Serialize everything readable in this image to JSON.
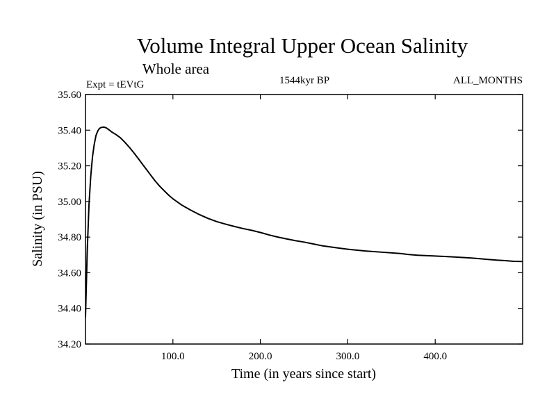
{
  "chart_data": {
    "type": "line",
    "title": "Volume Integral Upper Ocean Salinity",
    "subtitle": "Whole area",
    "experiment_label": "Expt = tEVtG",
    "period_label": "1544kyr BP",
    "months_label": "ALL_MONTHS",
    "xlabel": "Time (in years since start)",
    "ylabel": "Salinity (in PSU)",
    "xlim": [
      0,
      500
    ],
    "ylim": [
      34.2,
      35.6
    ],
    "x_ticks": [
      100,
      200,
      300,
      400
    ],
    "x_tick_labels": [
      "100.0",
      "200.0",
      "300.0",
      "400.0"
    ],
    "y_ticks": [
      34.2,
      34.4,
      34.6,
      34.8,
      35.0,
      35.2,
      35.4,
      35.6
    ],
    "y_tick_labels": [
      "34.20",
      "34.40",
      "34.60",
      "34.80",
      "35.00",
      "35.20",
      "35.40",
      "35.60"
    ],
    "grid": false,
    "line_color": "#000000",
    "series": [
      {
        "name": "Upper ocean salinity",
        "x": [
          0,
          2,
          4,
          6,
          8,
          10,
          12,
          14,
          16,
          18,
          20,
          22,
          24,
          26,
          28,
          30,
          35,
          40,
          45,
          50,
          55,
          60,
          65,
          70,
          75,
          80,
          85,
          90,
          95,
          100,
          110,
          120,
          130,
          140,
          150,
          160,
          170,
          180,
          190,
          200,
          210,
          220,
          230,
          240,
          250,
          260,
          270,
          280,
          290,
          300,
          320,
          340,
          360,
          370,
          380,
          400,
          420,
          440,
          450,
          460,
          470,
          480,
          490,
          500
        ],
        "values": [
          34.35,
          34.72,
          34.98,
          35.14,
          35.25,
          35.32,
          35.37,
          35.395,
          35.41,
          35.415,
          35.417,
          35.416,
          35.412,
          35.405,
          35.398,
          35.39,
          35.375,
          35.357,
          35.332,
          35.305,
          35.275,
          35.243,
          35.21,
          35.178,
          35.145,
          35.113,
          35.085,
          35.06,
          35.036,
          35.015,
          34.98,
          34.952,
          34.927,
          34.905,
          34.887,
          34.873,
          34.86,
          34.848,
          34.838,
          34.826,
          34.812,
          34.8,
          34.79,
          34.78,
          34.772,
          34.762,
          34.752,
          34.745,
          34.738,
          34.732,
          34.722,
          34.715,
          34.708,
          34.702,
          34.698,
          34.694,
          34.689,
          34.683,
          34.679,
          34.675,
          34.671,
          34.668,
          34.664,
          34.663
        ]
      }
    ]
  }
}
